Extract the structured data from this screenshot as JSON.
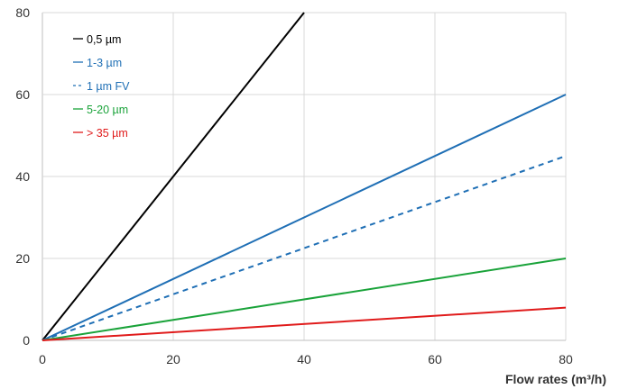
{
  "chart_data": {
    "type": "line",
    "title": "",
    "xlabel": "Flow rates (m³/h)",
    "ylabel": "",
    "xlim": [
      0,
      80
    ],
    "ylim": [
      0,
      80
    ],
    "x_ticks": [
      0,
      20,
      40,
      60,
      80
    ],
    "y_ticks": [
      0,
      20,
      40,
      60,
      80
    ],
    "grid": true,
    "legend_position": "top-left",
    "series": [
      {
        "name": "0,5 µm",
        "color": "#000000",
        "dash": "solid",
        "x": [
          0,
          40
        ],
        "y": [
          0,
          80
        ]
      },
      {
        "name": "1-3 µm",
        "color": "#1f6fb5",
        "dash": "solid",
        "x": [
          0,
          80
        ],
        "y": [
          0,
          60
        ]
      },
      {
        "name": "1 µm FV",
        "color": "#1f6fb5",
        "dash": "dashed",
        "x": [
          0,
          80
        ],
        "y": [
          0,
          45
        ]
      },
      {
        "name": "5-20 µm",
        "color": "#1aa33a",
        "dash": "solid",
        "x": [
          0,
          80
        ],
        "y": [
          0,
          20
        ]
      },
      {
        "name": "> 35 µm",
        "color": "#e01b1b",
        "dash": "solid",
        "x": [
          0,
          80
        ],
        "y": [
          0,
          8
        ]
      }
    ]
  }
}
